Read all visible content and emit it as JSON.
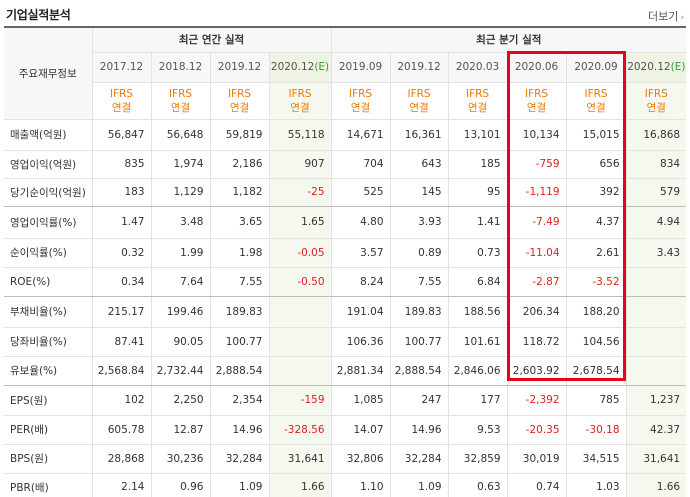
{
  "header": {
    "title": "기업실적분석",
    "more_label": "더보기",
    "more_arrow": "›"
  },
  "table": {
    "corner_label": "주요재무정보",
    "groups": {
      "annual": "최근 연간 실적",
      "quarter": "최근 분기 실적"
    },
    "periods": [
      "2017.12",
      "2018.12",
      "2019.12",
      "2020.12",
      "2019.09",
      "2019.12",
      "2020.03",
      "2020.06",
      "2020.09",
      "2020.12"
    ],
    "estimate_mark": "(E)",
    "standard_line1": "IFRS",
    "standard_line2": "연결",
    "rows": [
      {
        "label": "매출액(억원)",
        "values": [
          "56,847",
          "56,648",
          "59,819",
          "55,118",
          "14,671",
          "16,361",
          "13,101",
          "10,134",
          "15,015",
          "16,868"
        ]
      },
      {
        "label": "영업이익(억원)",
        "values": [
          "835",
          "1,974",
          "2,186",
          "907",
          "704",
          "643",
          "185",
          "-759",
          "656",
          "834"
        ]
      },
      {
        "label": "당기순이익(억원)",
        "values": [
          "183",
          "1,129",
          "1,182",
          "-25",
          "525",
          "145",
          "95",
          "-1,119",
          "392",
          "579"
        ]
      },
      {
        "label": "영업이익률(%)",
        "values": [
          "1.47",
          "3.48",
          "3.65",
          "1.65",
          "4.80",
          "3.93",
          "1.41",
          "-7.49",
          "4.37",
          "4.94"
        ]
      },
      {
        "label": "순이익률(%)",
        "values": [
          "0.32",
          "1.99",
          "1.98",
          "-0.05",
          "3.57",
          "0.89",
          "0.73",
          "-11.04",
          "2.61",
          "3.43"
        ]
      },
      {
        "label": "ROE(%)",
        "values": [
          "0.34",
          "7.64",
          "7.55",
          "-0.50",
          "8.24",
          "7.55",
          "6.84",
          "-2.87",
          "-3.52",
          ""
        ]
      },
      {
        "label": "부채비율(%)",
        "values": [
          "215.17",
          "199.46",
          "189.83",
          "",
          "191.04",
          "189.83",
          "188.56",
          "206.34",
          "188.20",
          ""
        ]
      },
      {
        "label": "당좌비율(%)",
        "values": [
          "87.41",
          "90.05",
          "100.77",
          "",
          "106.36",
          "100.77",
          "101.61",
          "118.72",
          "104.56",
          ""
        ]
      },
      {
        "label": "유보율(%)",
        "values": [
          "2,568.84",
          "2,732.44",
          "2,888.54",
          "",
          "2,881.34",
          "2,888.54",
          "2,846.06",
          "2,603.92",
          "2,678.54",
          ""
        ]
      },
      {
        "label": "EPS(원)",
        "values": [
          "102",
          "2,250",
          "2,354",
          "-159",
          "1,085",
          "247",
          "177",
          "-2,392",
          "785",
          "1,237"
        ]
      },
      {
        "label": "PER(배)",
        "values": [
          "605.78",
          "12.87",
          "14.96",
          "-328.56",
          "14.07",
          "14.96",
          "9.53",
          "-20.35",
          "-30.18",
          "42.37"
        ]
      },
      {
        "label": "BPS(원)",
        "values": [
          "28,868",
          "30,236",
          "32,284",
          "31,641",
          "32,806",
          "32,284",
          "32,859",
          "30,019",
          "34,515",
          "31,641"
        ]
      },
      {
        "label": "PBR(배)",
        "values": [
          "2.14",
          "0.96",
          "1.09",
          "1.66",
          "1.10",
          "1.09",
          "0.63",
          "0.74",
          "1.03",
          "1.66"
        ]
      }
    ]
  },
  "colors": {
    "negative": "#e02020",
    "standard": "#f07800",
    "estimate_bg": "#f5f8ee",
    "highlight_box": "#e8001c"
  }
}
